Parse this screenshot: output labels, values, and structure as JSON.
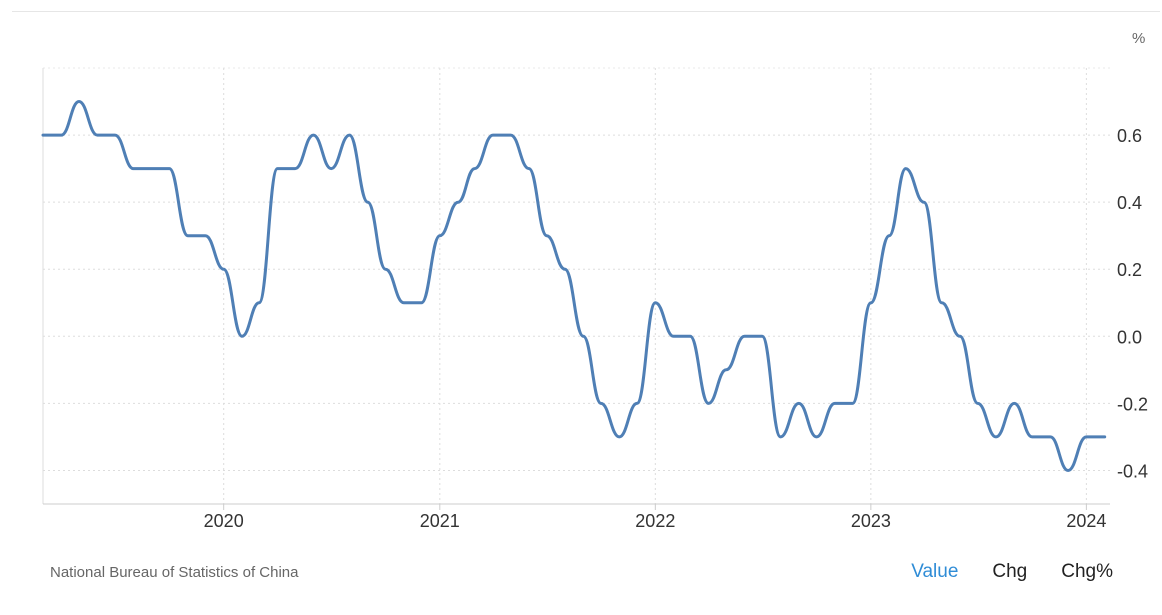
{
  "source": "National Bureau of Statistics of China",
  "tabs": [
    {
      "label": "Value",
      "active": true
    },
    {
      "label": "Chg",
      "active": false
    },
    {
      "label": "Chg%",
      "active": false
    }
  ],
  "colors": {
    "line": "#4f7fb5",
    "accent": "#2f8cd6",
    "grid": "#dddddd"
  },
  "chart_data": {
    "type": "line",
    "unit": "%",
    "grid": true,
    "y_axis_side": "right",
    "ylim": [
      -0.5,
      0.8
    ],
    "xlim": [
      "2019-03-01",
      "2024-02-10"
    ],
    "y_ticks": [
      0.6,
      0.4,
      0.2,
      0.0,
      -0.2,
      -0.4
    ],
    "y_tick_labels": [
      "0.6",
      "0.4",
      "0.2",
      "0.0",
      "-0.2",
      "-0.4"
    ],
    "x_ticks": [
      "2020-01-01",
      "2021-01-01",
      "2022-01-01",
      "2023-01-01",
      "2024-01-01"
    ],
    "x_tick_labels": [
      "2020",
      "2021",
      "2022",
      "2023",
      "2024"
    ],
    "series": [
      {
        "x": [
          "2019-03-01",
          "2019-04-01",
          "2019-05-01",
          "2019-06-01",
          "2019-07-01",
          "2019-08-01",
          "2019-09-01",
          "2019-10-01",
          "2019-11-01",
          "2019-12-01",
          "2020-01-01",
          "2020-02-01",
          "2020-03-01",
          "2020-04-01",
          "2020-05-01",
          "2020-06-01",
          "2020-07-01",
          "2020-08-01",
          "2020-09-01",
          "2020-10-01",
          "2020-11-01",
          "2020-12-01",
          "2021-01-01",
          "2021-02-01",
          "2021-03-01",
          "2021-04-01",
          "2021-05-01",
          "2021-06-01",
          "2021-07-01",
          "2021-08-01",
          "2021-09-01",
          "2021-10-01",
          "2021-11-01",
          "2021-12-01",
          "2022-01-01",
          "2022-02-01",
          "2022-03-01",
          "2022-04-01",
          "2022-05-01",
          "2022-06-01",
          "2022-07-01",
          "2022-08-01",
          "2022-09-01",
          "2022-10-01",
          "2022-11-01",
          "2022-12-01",
          "2023-01-01",
          "2023-02-01",
          "2023-03-01",
          "2023-04-01",
          "2023-05-01",
          "2023-06-01",
          "2023-07-01",
          "2023-08-01",
          "2023-09-01",
          "2023-10-01",
          "2023-11-01",
          "2023-12-01",
          "2024-01-01",
          "2024-02-01"
        ],
        "values": [
          0.6,
          0.6,
          0.7,
          0.6,
          0.6,
          0.5,
          0.5,
          0.5,
          0.3,
          0.3,
          0.2,
          0.0,
          0.1,
          0.5,
          0.5,
          0.6,
          0.5,
          0.6,
          0.4,
          0.2,
          0.1,
          0.1,
          0.3,
          0.4,
          0.5,
          0.6,
          0.6,
          0.5,
          0.3,
          0.2,
          0.0,
          -0.2,
          -0.3,
          -0.2,
          0.1,
          0.0,
          0.0,
          -0.2,
          -0.1,
          0.0,
          0.0,
          -0.3,
          -0.2,
          -0.3,
          -0.2,
          -0.2,
          0.1,
          0.3,
          0.5,
          0.4,
          0.1,
          0.0,
          -0.2,
          -0.3,
          -0.2,
          -0.3,
          -0.3,
          -0.4,
          -0.3,
          -0.3
        ]
      }
    ]
  }
}
